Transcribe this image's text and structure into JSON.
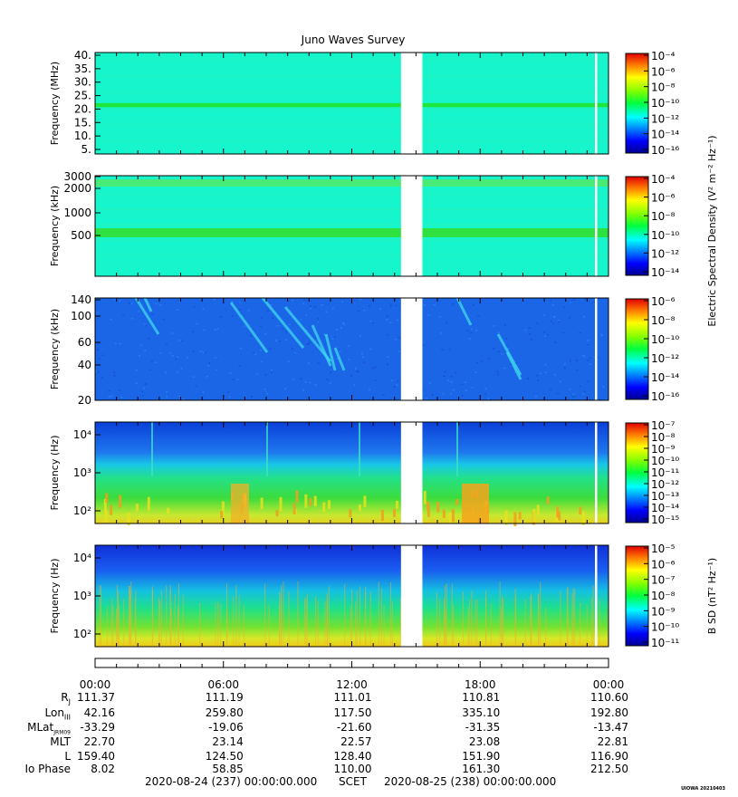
{
  "chart_data": {
    "type": "heatmap",
    "title": "Juno Waves Survey",
    "panels": [
      {
        "ylabel": "Frequency (MHz)",
        "yticks": [
          "40.",
          "35.",
          "30.",
          "25.",
          "20.",
          "15.",
          "10.",
          "5."
        ],
        "ylim": [
          3.5,
          41
        ],
        "scale": "linear",
        "colorbar": {
          "ticks": [
            "10⁻⁴",
            "10⁻⁶",
            "10⁻⁸",
            "10⁻¹⁰",
            "10⁻¹²",
            "10⁻¹⁴",
            "10⁻¹⁶"
          ]
        }
      },
      {
        "ylabel": "Frequency (kHz)",
        "yticks": [
          "3000",
          "2000",
          "1000",
          "500"
        ],
        "scale": "log",
        "colorbar": {
          "ticks": [
            "10⁻⁴",
            "10⁻⁶",
            "10⁻⁸",
            "10⁻¹⁰",
            "10⁻¹²",
            "10⁻¹⁴"
          ]
        }
      },
      {
        "ylabel": "Frequency (kHz)",
        "yticks": [
          "140",
          "100",
          "60",
          "40",
          "20"
        ],
        "scale": "log",
        "colorbar": {
          "ticks": [
            "10⁻⁶",
            "10⁻⁸",
            "10⁻¹⁰",
            "10⁻¹²",
            "10⁻¹⁴",
            "10⁻¹⁶"
          ]
        }
      },
      {
        "ylabel": "Frequency (Hz)",
        "yticks": [
          "10⁴",
          "10³",
          "10²"
        ],
        "scale": "log",
        "colorbar": {
          "ticks": [
            "10⁻⁷",
            "10⁻⁸",
            "10⁻⁹",
            "10⁻¹⁰",
            "10⁻¹¹",
            "10⁻¹²",
            "10⁻¹³",
            "10⁻¹⁴",
            "10⁻¹⁵"
          ]
        }
      },
      {
        "ylabel": "Frequency (Hz)",
        "yticks": [
          "10⁴",
          "10³",
          "10²"
        ],
        "scale": "log",
        "colorbar": {
          "ticks": [
            "10⁻⁵",
            "10⁻⁶",
            "10⁻⁷",
            "10⁻⁸",
            "10⁻⁹",
            "10⁻¹⁰",
            "10⁻¹¹"
          ]
        }
      }
    ],
    "colorbar_label_e": "Electric Spectral Density (V² m⁻² Hz⁻¹)",
    "colorbar_label_b": "B SD (nT² Hz⁻¹)",
    "x_ticks": [
      "00:00",
      "06:00",
      "12:00",
      "18:00",
      "00:00"
    ],
    "data_gap_hours": [
      14.3,
      15.3
    ],
    "ephemeris": [
      {
        "label": "R_J",
        "values": [
          "111.37",
          "111.19",
          "111.01",
          "110.81",
          "110.60"
        ]
      },
      {
        "label": "Lon_III",
        "values": [
          "42.16",
          "259.80",
          "117.50",
          "335.10",
          "192.80"
        ]
      },
      {
        "label": "MLat_JRM09",
        "values": [
          "-33.29",
          "-19.06",
          "-21.60",
          "-31.35",
          "-13.47"
        ]
      },
      {
        "label": "MLT",
        "values": [
          "22.70",
          "23.14",
          "22.57",
          "23.08",
          "22.81"
        ]
      },
      {
        "label": "L",
        "values": [
          "159.40",
          "124.50",
          "128.40",
          "151.90",
          "116.90"
        ]
      },
      {
        "label": "Io Phase",
        "values": [
          "8.02",
          "58.85",
          "110.00",
          "161.30",
          "212.50"
        ]
      }
    ],
    "start_label": "2020-08-24 (237) 00:00:00.000",
    "scet_label": "SCET",
    "end_label": "2020-08-25 (238) 00:00:00.000",
    "stamp": "UIOWA 20210403"
  }
}
